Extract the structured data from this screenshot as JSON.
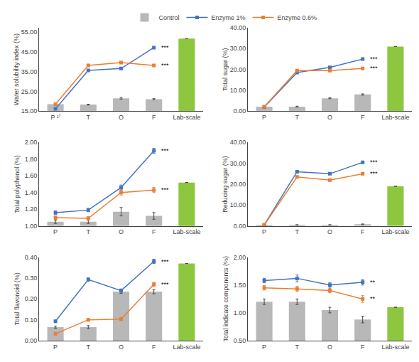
{
  "chart_data": [
    {
      "type": "bar",
      "y_label": "Water solubility index (%)",
      "categories": [
        "P ¹⁾",
        "T",
        "O",
        "F",
        "Lab-scale"
      ],
      "series": [
        {
          "name": "Control",
          "type": "bar",
          "colors": [
            "#b8b8b8",
            "#b8b8b8",
            "#b8b8b8",
            "#b8b8b8",
            "#8dc63f"
          ],
          "values": [
            18.5,
            18.3,
            21.5,
            21.0,
            51.5
          ],
          "errors": [
            0.2,
            0.2,
            0.4,
            0.3,
            0
          ]
        },
        {
          "name": "Enzyme 1%",
          "type": "line",
          "color": "#4472c4",
          "marker": "square",
          "values": [
            16.2,
            35.5,
            36.5,
            47.0,
            null
          ],
          "errors": [
            0.3,
            0.3,
            0.3,
            0.5,
            null
          ]
        },
        {
          "name": "Enzyme 0.6%",
          "type": "line",
          "color": "#ed7d31",
          "marker": "square",
          "values": [
            18.5,
            38.0,
            39.5,
            38.0,
            null
          ],
          "errors": [
            0.3,
            0.3,
            0.3,
            0.5,
            null
          ]
        }
      ],
      "annotations": [
        {
          "text": "***",
          "x": "F",
          "y": 47.0
        },
        {
          "text": "***",
          "x": "F",
          "y": 38.0
        }
      ],
      "ylim": [
        15.0,
        57.0
      ],
      "yticks": [
        {
          "value": 15.0,
          "label": "15.00"
        },
        {
          "value": 25.0,
          "label": "25.00"
        },
        {
          "value": 35.0,
          "label": "35.00"
        },
        {
          "value": 45.0,
          "label": "45.00"
        },
        {
          "value": 55.0,
          "label": "55.00"
        }
      ],
      "grid": false,
      "legend": "top"
    },
    {
      "type": "bar",
      "y_label": "Total sugar (%)",
      "categories": [
        "P",
        "T",
        "O",
        "F",
        "Lab-scale"
      ],
      "series": [
        {
          "name": "Control",
          "type": "bar",
          "colors": [
            "#b8b8b8",
            "#b8b8b8",
            "#b8b8b8",
            "#b8b8b8",
            "#8dc63f"
          ],
          "values": [
            2.2,
            2.2,
            6.2,
            8.0,
            31.0
          ],
          "errors": [
            0.1,
            0.2,
            0.2,
            0.3,
            0
          ]
        },
        {
          "name": "Enzyme 1%",
          "type": "line",
          "color": "#4472c4",
          "marker": "square",
          "values": [
            2.0,
            18.5,
            21.0,
            25.0,
            null
          ],
          "errors": [
            0.2,
            0.3,
            0.4,
            0.5,
            null
          ]
        },
        {
          "name": "Enzyme 0.6%",
          "type": "line",
          "color": "#ed7d31",
          "marker": "square",
          "values": [
            2.2,
            19.5,
            19.5,
            20.5,
            null
          ],
          "errors": [
            0.2,
            0.3,
            0.3,
            0.4,
            null
          ]
        }
      ],
      "annotations": [
        {
          "text": "***",
          "x": "F",
          "y": 25.0
        },
        {
          "text": "***",
          "x": "F",
          "y": 20.5
        }
      ],
      "ylim": [
        0.0,
        40.0
      ],
      "yticks": [
        {
          "value": 0.0,
          "label": "0.00"
        },
        {
          "value": 10.0,
          "label": "10.00"
        },
        {
          "value": 20.0,
          "label": "20.00"
        },
        {
          "value": 30.0,
          "label": "30.00"
        },
        {
          "value": 40.0,
          "label": "40.00"
        }
      ],
      "grid": false,
      "legend": "top"
    },
    {
      "type": "bar",
      "y_label": "Total polyphenol (%)",
      "categories": [
        "P",
        "T",
        "O",
        "F",
        "Lab-scale"
      ],
      "series": [
        {
          "name": "Control",
          "type": "bar",
          "colors": [
            "#b8b8b8",
            "#b8b8b8",
            "#b8b8b8",
            "#b8b8b8",
            "#8dc63f"
          ],
          "values": [
            1.05,
            1.05,
            1.17,
            1.12,
            1.52
          ],
          "errors": [
            0.02,
            0.02,
            0.05,
            0.04,
            0
          ]
        },
        {
          "name": "Enzyme 1%",
          "type": "line",
          "color": "#4472c4",
          "marker": "square",
          "values": [
            1.16,
            1.19,
            1.46,
            1.9,
            null
          ],
          "errors": [
            0.02,
            0.02,
            0.03,
            0.03,
            null
          ]
        },
        {
          "name": "Enzyme 0.6%",
          "type": "line",
          "color": "#ed7d31",
          "marker": "square",
          "values": [
            1.1,
            1.09,
            1.4,
            1.43,
            null
          ],
          "errors": [
            0.02,
            0.02,
            0.03,
            0.03,
            null
          ]
        }
      ],
      "annotations": [
        {
          "text": "***",
          "x": "F",
          "y": 1.9
        },
        {
          "text": "***",
          "x": "F",
          "y": 1.43
        }
      ],
      "ylim": [
        1.0,
        2.0
      ],
      "yticks": [
        {
          "value": 1.0,
          "label": "1.00"
        },
        {
          "value": 1.2,
          "label": "1.20"
        },
        {
          "value": 1.4,
          "label": "1.40"
        },
        {
          "value": 1.6,
          "label": "1.60"
        },
        {
          "value": 1.8,
          "label": "1.80"
        },
        {
          "value": 2.0,
          "label": "2.00"
        }
      ],
      "grid": false,
      "legend": "top"
    },
    {
      "type": "bar",
      "y_label": "Reducing sugar (%)",
      "categories": [
        "P",
        "T",
        "O",
        "F",
        "Lab-scale"
      ],
      "series": [
        {
          "name": "Control",
          "type": "bar",
          "colors": [
            "#b8b8b8",
            "#b8b8b8",
            "#b8b8b8",
            "#b8b8b8",
            "#8dc63f"
          ],
          "values": [
            0.5,
            0.5,
            0.5,
            0.8,
            19.0
          ],
          "errors": [
            0.05,
            0.1,
            0.1,
            0.15,
            0
          ]
        },
        {
          "name": "Enzyme 1%",
          "type": "line",
          "color": "#4472c4",
          "marker": "square",
          "values": [
            0.5,
            26.0,
            25.0,
            30.5,
            null
          ],
          "errors": [
            0.05,
            0.4,
            0.4,
            0.5,
            null
          ]
        },
        {
          "name": "Enzyme 0.6%",
          "type": "line",
          "color": "#ed7d31",
          "marker": "square",
          "values": [
            0.5,
            23.5,
            22.0,
            25.0,
            null
          ],
          "errors": [
            0.05,
            0.4,
            0.4,
            0.5,
            null
          ]
        }
      ],
      "annotations": [
        {
          "text": "***",
          "x": "F",
          "y": 30.5
        },
        {
          "text": "***",
          "x": "F",
          "y": 25.0
        }
      ],
      "ylim": [
        0.0,
        40.0
      ],
      "yticks": [
        {
          "value": 0.0,
          "label": "0.00"
        },
        {
          "value": 10.0,
          "label": "10.00"
        },
        {
          "value": 20.0,
          "label": "20.00"
        },
        {
          "value": 30.0,
          "label": "30.00"
        },
        {
          "value": 40.0,
          "label": "40.00"
        }
      ],
      "grid": false,
      "legend": "top"
    },
    {
      "type": "bar",
      "y_label": "Total flavonoid (%)",
      "categories": [
        "P",
        "T",
        "O",
        "F",
        "Lab-scale"
      ],
      "series": [
        {
          "name": "Control",
          "type": "bar",
          "colors": [
            "#b8b8b8",
            "#b8b8b8",
            "#b8b8b8",
            "#b8b8b8",
            "#8dc63f"
          ],
          "values": [
            0.065,
            0.065,
            0.235,
            0.235,
            0.37
          ],
          "errors": [
            0.005,
            0.007,
            0.008,
            0.01,
            0
          ]
        },
        {
          "name": "Enzyme 1%",
          "type": "line",
          "color": "#4472c4",
          "marker": "square",
          "values": [
            0.093,
            0.293,
            0.24,
            0.38,
            null
          ],
          "errors": [
            0.006,
            0.008,
            0.008,
            0.01,
            null
          ]
        },
        {
          "name": "Enzyme 0.6%",
          "type": "line",
          "color": "#ed7d31",
          "marker": "square",
          "values": [
            0.033,
            0.1,
            0.103,
            0.27,
            null
          ],
          "errors": [
            0.004,
            0.006,
            0.006,
            0.01,
            null
          ]
        }
      ],
      "annotations": [
        {
          "text": "***",
          "x": "F",
          "y": 0.38
        },
        {
          "text": "***",
          "x": "F",
          "y": 0.27
        }
      ],
      "ylim": [
        0.0,
        0.4
      ],
      "yticks": [
        {
          "value": 0.0,
          "label": "0.00"
        },
        {
          "value": 0.1,
          "label": "0.10"
        },
        {
          "value": 0.2,
          "label": "0.20"
        },
        {
          "value": 0.3,
          "label": "0.30"
        },
        {
          "value": 0.4,
          "label": "0.40"
        }
      ],
      "grid": false,
      "legend": "top"
    },
    {
      "type": "bar",
      "y_label": "Total indicate components (%)",
      "categories": [
        "P",
        "T",
        "O",
        "F",
        "Lab-scale"
      ],
      "series": [
        {
          "name": "Control",
          "type": "bar",
          "colors": [
            "#b8b8b8",
            "#b8b8b8",
            "#b8b8b8",
            "#b8b8b8",
            "#8dc63f"
          ],
          "values": [
            1.2,
            1.2,
            1.05,
            0.88,
            1.1
          ],
          "errors": [
            0.05,
            0.05,
            0.05,
            0.06,
            0
          ]
        },
        {
          "name": "Enzyme 1%",
          "type": "line",
          "color": "#4472c4",
          "marker": "square",
          "values": [
            1.58,
            1.62,
            1.5,
            1.55,
            null
          ],
          "errors": [
            0.04,
            0.06,
            0.04,
            0.05,
            null
          ]
        },
        {
          "name": "Enzyme 0.6%",
          "type": "line",
          "color": "#ed7d31",
          "marker": "square",
          "values": [
            1.45,
            1.43,
            1.4,
            1.25,
            null
          ],
          "errors": [
            0.04,
            0.05,
            0.04,
            0.06,
            null
          ]
        }
      ],
      "annotations": [
        {
          "text": "**",
          "x": "F",
          "y": 1.55
        },
        {
          "text": "**",
          "x": "F",
          "y": 1.25
        }
      ],
      "ylim": [
        0.5,
        2.0
      ],
      "yticks": [
        {
          "value": 0.5,
          "label": "0.50"
        },
        {
          "value": 1.0,
          "label": "1.00"
        },
        {
          "value": 1.5,
          "label": "1.50"
        },
        {
          "value": 2.0,
          "label": "2.00"
        }
      ],
      "grid": false,
      "legend": "top"
    }
  ]
}
